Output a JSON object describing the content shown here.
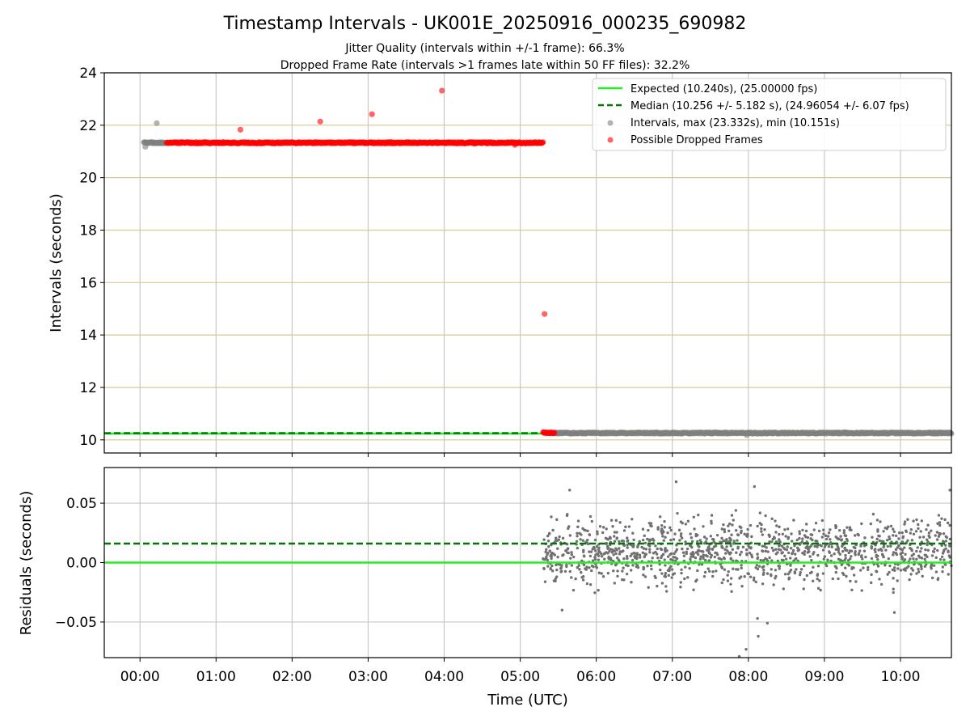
{
  "figure": {
    "title": "Timestamp Intervals - UK001E_20250916_000235_690982",
    "subtitle_1": "Jitter Quality (intervals within +/-1 frame): 66.3%",
    "subtitle_2": "Dropped Frame Rate (intervals >1 frames late within 50 FF files): 32.2%"
  },
  "chart_data": [
    {
      "type": "scatter",
      "name": "intervals-panel",
      "xlabel": "",
      "ylabel": "Intervals (seconds)",
      "xlim_hours": [
        -0.47,
        10.67
      ],
      "ylim": [
        9.5,
        24
      ],
      "yticks": [
        10,
        12,
        14,
        16,
        18,
        20,
        22,
        24
      ],
      "xtick_hours": [
        0,
        1,
        2,
        3,
        4,
        5,
        6,
        7,
        8,
        9,
        10
      ],
      "xtick_labels": [
        "00:00",
        "01:00",
        "02:00",
        "03:00",
        "04:00",
        "05:00",
        "06:00",
        "07:00",
        "08:00",
        "09:00",
        "10:00"
      ],
      "grid": true,
      "legend_position": "top-right",
      "lines": [
        {
          "label": "Expected (10.240s), (25.00000 fps)",
          "y": 10.24,
          "color": "#22ee22",
          "style": "solid"
        },
        {
          "label": "Median (10.256 +/- 5.182 s), (24.96054 +/- 6.07 fps)",
          "y": 10.256,
          "color": "#007700",
          "style": "dashed"
        }
      ],
      "series": [
        {
          "label": "Intervals, max (23.332s), min (10.151s)",
          "color": "#808080",
          "segments": [
            {
              "x_start": 0.05,
              "x_end": 0.33,
              "y": 21.33
            },
            {
              "x_start": 5.45,
              "x_end": 10.67,
              "y": 10.26
            }
          ],
          "points": [
            {
              "x": 0.22,
              "y": 22.08
            },
            {
              "x": 0.07,
              "y": 21.18
            },
            {
              "x": 7.98,
              "y": 10.18
            }
          ]
        },
        {
          "label": "Possible Dropped Frames",
          "color": "#ff0000",
          "segments": [
            {
              "x_start": 0.35,
              "x_end": 5.3,
              "y": 21.33
            },
            {
              "x_start": 5.3,
              "x_end": 5.45,
              "y": 10.27
            }
          ],
          "points": [
            {
              "x": 1.32,
              "y": 21.83
            },
            {
              "x": 2.37,
              "y": 22.14
            },
            {
              "x": 3.05,
              "y": 22.42
            },
            {
              "x": 3.97,
              "y": 23.32
            },
            {
              "x": 5.32,
              "y": 14.8
            },
            {
              "x": 4.93,
              "y": 21.25
            }
          ]
        }
      ]
    },
    {
      "type": "scatter",
      "name": "residuals-panel",
      "xlabel": "Time (UTC)",
      "ylabel": "Residuals (seconds)",
      "xlim_hours": [
        -0.47,
        10.67
      ],
      "ylim": [
        -0.08,
        0.08
      ],
      "yticks": [
        -0.05,
        0.0,
        0.05
      ],
      "ytick_labels": [
        "−0.05",
        "0.00",
        "0.05"
      ],
      "xtick_hours": [
        0,
        1,
        2,
        3,
        4,
        5,
        6,
        7,
        8,
        9,
        10
      ],
      "xtick_labels": [
        "00:00",
        "01:00",
        "02:00",
        "03:00",
        "04:00",
        "05:00",
        "06:00",
        "07:00",
        "08:00",
        "09:00",
        "10:00"
      ],
      "grid": true,
      "lines": [
        {
          "y": 0.0,
          "color": "#22ee22",
          "style": "solid"
        },
        {
          "y": 0.016,
          "color": "#007700",
          "style": "dashed"
        }
      ],
      "scatter_band": {
        "x_start": 5.3,
        "x_end": 10.67,
        "center": 0.009,
        "spread": 0.013,
        "count": 1250,
        "color": "#707070"
      },
      "outliers": [
        {
          "x": 5.65,
          "y": 0.061
        },
        {
          "x": 7.05,
          "y": 0.068
        },
        {
          "x": 8.08,
          "y": 0.064
        },
        {
          "x": 10.65,
          "y": 0.061
        },
        {
          "x": 7.97,
          "y": -0.073
        },
        {
          "x": 7.88,
          "y": -0.079
        },
        {
          "x": 8.13,
          "y": -0.062
        },
        {
          "x": 8.25,
          "y": -0.051
        },
        {
          "x": 9.92,
          "y": -0.042
        },
        {
          "x": 5.55,
          "y": -0.04
        },
        {
          "x": 8.12,
          "y": -0.047
        }
      ]
    }
  ]
}
